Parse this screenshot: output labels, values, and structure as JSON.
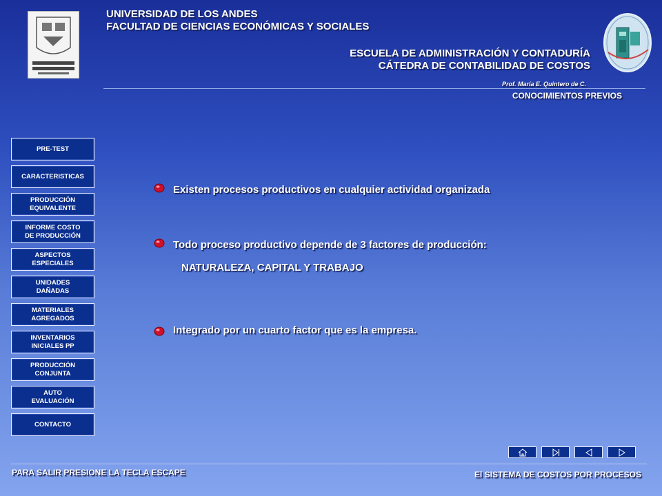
{
  "header": {
    "logo_text": "UNIVERSIDAD DE LOS ANDES MÉRIDA VENEZUELA",
    "university": "UNIVERSIDAD DE LOS ANDES",
    "faculty": "FACULTAD DE CIENCIAS ECONÓMICAS Y SOCIALES",
    "school": "ESCUELA DE ADMINISTRACIÓN Y CONTADURÍA",
    "chair": "CÁTEDRA DE CONTABILIDAD DE COSTOS",
    "professor": "Prof. María E. Quintero de C.",
    "section": "CONOCIMIENTOS  PREVIOS"
  },
  "nav": {
    "items": [
      {
        "line1": "PRE-TEST",
        "line2": ""
      },
      {
        "line1": "CARACTERISTICAS",
        "line2": ""
      },
      {
        "line1": "PRODUCCIÓN",
        "line2": "EQUIVALENTE"
      },
      {
        "line1": "INFORME COSTO",
        "line2": "DE PRODUCCIÓN"
      },
      {
        "line1": "ASPECTOS",
        "line2": "ESPECIALES"
      },
      {
        "line1": "UNIDADES",
        "line2": "DAÑADAS"
      },
      {
        "line1": "MATERIALES",
        "line2": "AGREGADOS"
      },
      {
        "line1": "INVENTARIOS",
        "line2": "INICIALES PP"
      },
      {
        "line1": "PRODUCCIÓN",
        "line2": "CONJUNTA"
      },
      {
        "line1": "AUTO",
        "line2": "EVALUACIÓN"
      },
      {
        "line1": "CONTACTO",
        "line2": ""
      }
    ]
  },
  "content": {
    "point1": "Existen procesos productivos en cualquier actividad organizada",
    "point2": "Todo proceso productivo depende de  3 factores de producción:",
    "point2_detail": "NATURALEZA, CAPITAL Y TRABAJO",
    "point3": "Integrado por un cuarto factor que es la empresa."
  },
  "controls": {
    "icons": [
      "home-icon",
      "end-icon",
      "back-icon",
      "forward-icon"
    ]
  },
  "footer": {
    "left": "PARA SALIR  PRESIONE  LA TECLA ESCAPE",
    "right": "El SISTEMA DE COSTOS POR PROCESOS"
  },
  "colors": {
    "nav_button": "#0b2f8e",
    "bullet": "#d0102a",
    "background_top": "#1a2f9a",
    "background_bottom": "#84a4ee"
  }
}
